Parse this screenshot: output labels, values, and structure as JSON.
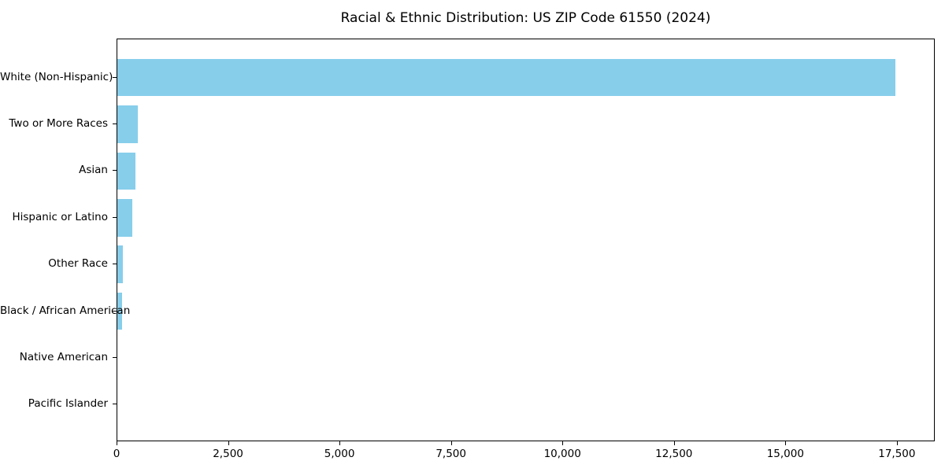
{
  "chart_data": {
    "type": "bar",
    "orientation": "horizontal",
    "title": "Racial & Ethnic Distribution: US ZIP Code 61550 (2024)",
    "categories": [
      "White (Non-Hispanic)",
      "Two or More Races",
      "Asian",
      "Hispanic or Latino",
      "Other Race",
      "Black / African American",
      "Native American",
      "Pacific Islander"
    ],
    "values": [
      17450,
      465,
      405,
      335,
      130,
      105,
      0,
      0
    ],
    "xlabel": "",
    "ylabel": "",
    "xlim": [
      0,
      18350
    ],
    "xticks": {
      "values": [
        0,
        2500,
        5000,
        7500,
        10000,
        12500,
        15000,
        17500
      ],
      "labels": [
        "0",
        "2,500",
        "5,000",
        "7,500",
        "10,000",
        "12,500",
        "15,000",
        "17,500"
      ]
    },
    "grid": false,
    "legend": null,
    "bar_color": "#87CEEB",
    "background_color": "#FFFFFF",
    "spine_color": "#000000",
    "text_color": "#000000"
  }
}
